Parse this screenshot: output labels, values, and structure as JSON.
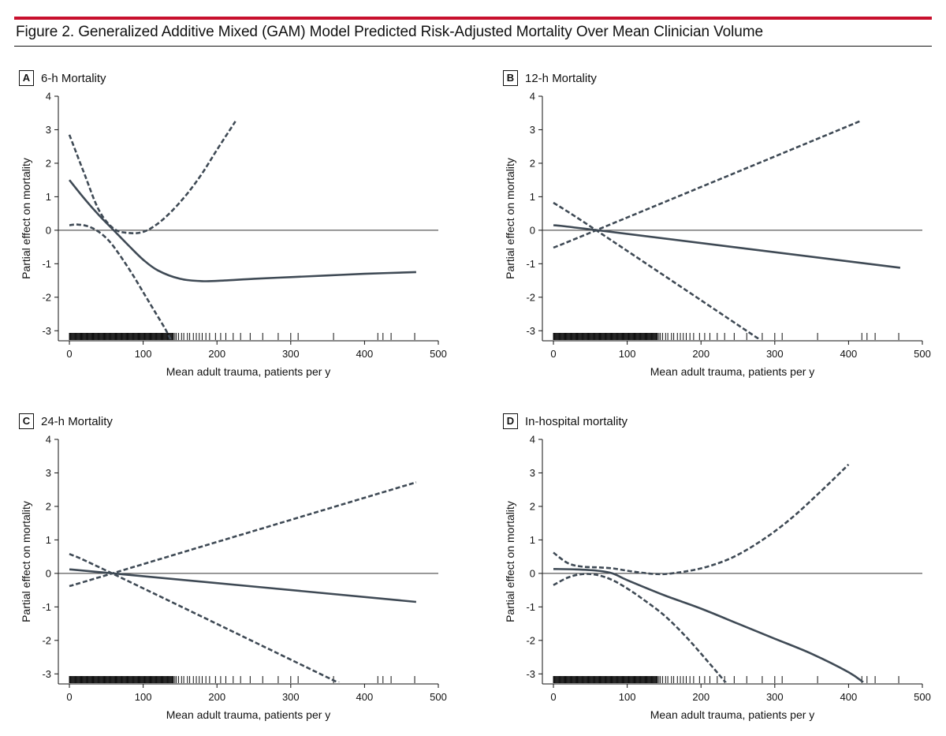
{
  "figure": {
    "title": "Figure 2. Generalized Additive Mixed (GAM) Model Predicted Risk-Adjusted Mortality Over Mean Clinician Volume",
    "accent_color": "#c8102e",
    "line_color": "#3f4a55"
  },
  "chart_data": [
    {
      "panel": "A",
      "title": "6-h Mortality",
      "type": "line",
      "xlabel": "Mean adult trauma, patients per y",
      "ylabel": "Partial effect on mortality",
      "xlim": [
        -15,
        500
      ],
      "ylim": [
        -3.3,
        4
      ],
      "xticks": [
        0,
        100,
        200,
        300,
        400,
        500
      ],
      "yticks": [
        4,
        3,
        2,
        1,
        0,
        -1,
        -2,
        -3
      ],
      "reference_line_y": 0,
      "series": [
        {
          "style": "solid",
          "x": [
            0,
            20,
            40,
            60,
            80,
            100,
            120,
            150,
            180,
            210,
            250,
            300,
            350,
            400,
            470
          ],
          "y": [
            1.5,
            0.95,
            0.45,
            0.0,
            -0.45,
            -0.88,
            -1.2,
            -1.45,
            -1.52,
            -1.5,
            -1.45,
            -1.4,
            -1.35,
            -1.3,
            -1.25
          ]
        },
        {
          "style": "dashed",
          "x": [
            0,
            20,
            40,
            60,
            80,
            100,
            120,
            140,
            160,
            180,
            200,
            225
          ],
          "y": [
            2.85,
            1.7,
            0.6,
            0.05,
            -0.08,
            -0.05,
            0.2,
            0.6,
            1.1,
            1.7,
            2.4,
            3.25
          ]
        },
        {
          "style": "dashed",
          "x": [
            0,
            10,
            25,
            40,
            55,
            70,
            85,
            100,
            115,
            130,
            138
          ],
          "y": [
            0.15,
            0.17,
            0.12,
            -0.05,
            -0.35,
            -0.8,
            -1.3,
            -1.85,
            -2.4,
            -2.95,
            -3.3
          ]
        }
      ],
      "rug": [
        0,
        1,
        2,
        3,
        4,
        5,
        6,
        7,
        8,
        9,
        10,
        11,
        12,
        13,
        14,
        15,
        16,
        17,
        18,
        19,
        20,
        21,
        22,
        23,
        24,
        25,
        26,
        27,
        28,
        29,
        30,
        31,
        32,
        33,
        34,
        35,
        36,
        37,
        38,
        39,
        40,
        41,
        42,
        43,
        44,
        45,
        46,
        47,
        48,
        49,
        50,
        51,
        52,
        53,
        54,
        55,
        56,
        57,
        58,
        59,
        60,
        61,
        62,
        63,
        64,
        65,
        66,
        67,
        68,
        69,
        70,
        71,
        72,
        73,
        74,
        75,
        76,
        77,
        78,
        79,
        80,
        81,
        82,
        83,
        84,
        85,
        86,
        87,
        88,
        89,
        90,
        91,
        92,
        93,
        94,
        95,
        96,
        97,
        98,
        99,
        100,
        101,
        102,
        103,
        104,
        105,
        106,
        107,
        108,
        109,
        110,
        111,
        112,
        113,
        114,
        115,
        116,
        117,
        118,
        119,
        120,
        121,
        122,
        123,
        124,
        125,
        126,
        127,
        128,
        129,
        130,
        131,
        132,
        133,
        134,
        135,
        136,
        137,
        138,
        139,
        140,
        141,
        143,
        145,
        148,
        152,
        155,
        160,
        163,
        168,
        172,
        176,
        180,
        185,
        190,
        198,
        205,
        212,
        222,
        232,
        245,
        262,
        283,
        300,
        310,
        358,
        418,
        425,
        436,
        468
      ]
    },
    {
      "panel": "B",
      "title": "12-h Mortality",
      "type": "line",
      "xlabel": "Mean adult trauma, patients per y",
      "ylabel": "Partial effect on mortality",
      "xlim": [
        -15,
        500
      ],
      "ylim": [
        -3.3,
        4
      ],
      "xticks": [
        0,
        100,
        200,
        300,
        400,
        500
      ],
      "yticks": [
        4,
        3,
        2,
        1,
        0,
        -1,
        -2,
        -3
      ],
      "reference_line_y": 0,
      "series": [
        {
          "style": "solid",
          "x": [
            0,
            60,
            470
          ],
          "y": [
            0.15,
            0.0,
            -1.12
          ]
        },
        {
          "style": "dashed",
          "x": [
            0,
            58,
            415
          ],
          "y": [
            -0.52,
            0.0,
            3.25
          ]
        },
        {
          "style": "dashed",
          "x": [
            0,
            58,
            282
          ],
          "y": [
            0.82,
            0.0,
            -3.3
          ]
        }
      ],
      "rug": [
        0,
        1,
        2,
        3,
        4,
        5,
        6,
        7,
        8,
        9,
        10,
        11,
        12,
        13,
        14,
        15,
        16,
        17,
        18,
        19,
        20,
        21,
        22,
        23,
        24,
        25,
        26,
        27,
        28,
        29,
        30,
        31,
        32,
        33,
        34,
        35,
        36,
        37,
        38,
        39,
        40,
        41,
        42,
        43,
        44,
        45,
        46,
        47,
        48,
        49,
        50,
        51,
        52,
        53,
        54,
        55,
        56,
        57,
        58,
        59,
        60,
        61,
        62,
        63,
        64,
        65,
        66,
        67,
        68,
        69,
        70,
        71,
        72,
        73,
        74,
        75,
        76,
        77,
        78,
        79,
        80,
        81,
        82,
        83,
        84,
        85,
        86,
        87,
        88,
        89,
        90,
        91,
        92,
        93,
        94,
        95,
        96,
        97,
        98,
        99,
        100,
        101,
        102,
        103,
        104,
        105,
        106,
        107,
        108,
        109,
        110,
        111,
        112,
        113,
        114,
        115,
        116,
        117,
        118,
        119,
        120,
        121,
        122,
        123,
        124,
        125,
        126,
        127,
        128,
        129,
        130,
        131,
        132,
        133,
        134,
        135,
        136,
        137,
        138,
        139,
        140,
        141,
        143,
        145,
        148,
        152,
        155,
        160,
        163,
        168,
        172,
        176,
        180,
        185,
        190,
        198,
        205,
        212,
        222,
        232,
        245,
        262,
        283,
        300,
        310,
        358,
        418,
        425,
        436,
        468
      ]
    },
    {
      "panel": "C",
      "title": "24-h Mortality",
      "type": "line",
      "xlabel": "Mean adult trauma, patients per y",
      "ylabel": "Partial effect on mortality",
      "xlim": [
        -15,
        500
      ],
      "ylim": [
        -3.3,
        4
      ],
      "xticks": [
        0,
        100,
        200,
        300,
        400,
        500
      ],
      "yticks": [
        4,
        3,
        2,
        1,
        0,
        -1,
        -2,
        -3
      ],
      "reference_line_y": 0,
      "series": [
        {
          "style": "solid",
          "x": [
            0,
            60,
            470
          ],
          "y": [
            0.12,
            0.0,
            -0.85
          ]
        },
        {
          "style": "dashed",
          "x": [
            0,
            58,
            470
          ],
          "y": [
            -0.38,
            0.0,
            2.72
          ]
        },
        {
          "style": "dashed",
          "x": [
            0,
            58,
            368
          ],
          "y": [
            0.58,
            0.0,
            -3.3
          ]
        }
      ],
      "rug": [
        0,
        1,
        2,
        3,
        4,
        5,
        6,
        7,
        8,
        9,
        10,
        11,
        12,
        13,
        14,
        15,
        16,
        17,
        18,
        19,
        20,
        21,
        22,
        23,
        24,
        25,
        26,
        27,
        28,
        29,
        30,
        31,
        32,
        33,
        34,
        35,
        36,
        37,
        38,
        39,
        40,
        41,
        42,
        43,
        44,
        45,
        46,
        47,
        48,
        49,
        50,
        51,
        52,
        53,
        54,
        55,
        56,
        57,
        58,
        59,
        60,
        61,
        62,
        63,
        64,
        65,
        66,
        67,
        68,
        69,
        70,
        71,
        72,
        73,
        74,
        75,
        76,
        77,
        78,
        79,
        80,
        81,
        82,
        83,
        84,
        85,
        86,
        87,
        88,
        89,
        90,
        91,
        92,
        93,
        94,
        95,
        96,
        97,
        98,
        99,
        100,
        101,
        102,
        103,
        104,
        105,
        106,
        107,
        108,
        109,
        110,
        111,
        112,
        113,
        114,
        115,
        116,
        117,
        118,
        119,
        120,
        121,
        122,
        123,
        124,
        125,
        126,
        127,
        128,
        129,
        130,
        131,
        132,
        133,
        134,
        135,
        136,
        137,
        138,
        139,
        140,
        141,
        143,
        145,
        148,
        152,
        155,
        160,
        163,
        168,
        172,
        176,
        180,
        185,
        190,
        198,
        205,
        212,
        222,
        232,
        245,
        262,
        283,
        300,
        310,
        358,
        418,
        425,
        436,
        468
      ]
    },
    {
      "panel": "D",
      "title": "In-hospital mortality",
      "type": "line",
      "xlabel": "Mean adult trauma, patients per y",
      "ylabel": "Partial effect on mortality",
      "xlim": [
        -15,
        500
      ],
      "ylim": [
        -3.3,
        4
      ],
      "xticks": [
        0,
        100,
        200,
        300,
        400,
        500
      ],
      "yticks": [
        4,
        3,
        2,
        1,
        0,
        -1,
        -2,
        -3
      ],
      "reference_line_y": 0,
      "series": [
        {
          "style": "solid",
          "x": [
            0,
            30,
            60,
            80,
            100,
            150,
            200,
            250,
            300,
            350,
            400,
            420
          ],
          "y": [
            0.13,
            0.12,
            0.08,
            0.0,
            -0.2,
            -0.65,
            -1.05,
            -1.5,
            -1.95,
            -2.4,
            -2.95,
            -3.25
          ]
        },
        {
          "style": "dashed",
          "x": [
            0,
            20,
            40,
            60,
            80,
            100,
            120,
            140,
            160,
            200,
            240,
            280,
            320,
            360,
            400
          ],
          "y": [
            0.62,
            0.3,
            0.2,
            0.18,
            0.15,
            0.08,
            0.02,
            -0.02,
            0.0,
            0.15,
            0.45,
            0.95,
            1.6,
            2.4,
            3.25
          ]
        },
        {
          "style": "dashed",
          "x": [
            0,
            20,
            40,
            60,
            80,
            100,
            120,
            150,
            180,
            210,
            235
          ],
          "y": [
            -0.35,
            -0.12,
            -0.02,
            -0.05,
            -0.2,
            -0.45,
            -0.75,
            -1.25,
            -1.9,
            -2.65,
            -3.3
          ]
        }
      ],
      "rug": [
        0,
        1,
        2,
        3,
        4,
        5,
        6,
        7,
        8,
        9,
        10,
        11,
        12,
        13,
        14,
        15,
        16,
        17,
        18,
        19,
        20,
        21,
        22,
        23,
        24,
        25,
        26,
        27,
        28,
        29,
        30,
        31,
        32,
        33,
        34,
        35,
        36,
        37,
        38,
        39,
        40,
        41,
        42,
        43,
        44,
        45,
        46,
        47,
        48,
        49,
        50,
        51,
        52,
        53,
        54,
        55,
        56,
        57,
        58,
        59,
        60,
        61,
        62,
        63,
        64,
        65,
        66,
        67,
        68,
        69,
        70,
        71,
        72,
        73,
        74,
        75,
        76,
        77,
        78,
        79,
        80,
        81,
        82,
        83,
        84,
        85,
        86,
        87,
        88,
        89,
        90,
        91,
        92,
        93,
        94,
        95,
        96,
        97,
        98,
        99,
        100,
        101,
        102,
        103,
        104,
        105,
        106,
        107,
        108,
        109,
        110,
        111,
        112,
        113,
        114,
        115,
        116,
        117,
        118,
        119,
        120,
        121,
        122,
        123,
        124,
        125,
        126,
        127,
        128,
        129,
        130,
        131,
        132,
        133,
        134,
        135,
        136,
        137,
        138,
        139,
        140,
        141,
        143,
        145,
        148,
        152,
        155,
        160,
        163,
        168,
        172,
        176,
        180,
        185,
        190,
        198,
        205,
        212,
        222,
        232,
        245,
        262,
        283,
        300,
        310,
        358,
        418,
        425,
        436,
        468
      ]
    }
  ]
}
